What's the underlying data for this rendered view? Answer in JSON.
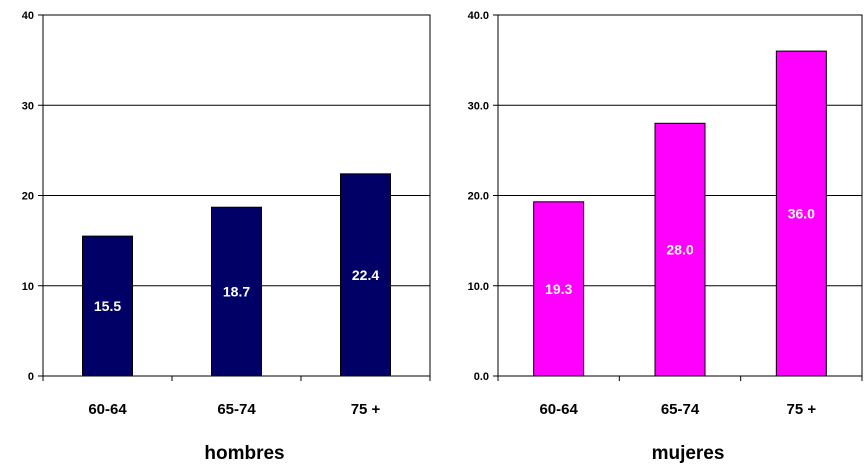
{
  "chart_data": [
    {
      "type": "bar",
      "title": "hombres",
      "categories": [
        "60-64",
        "65-74",
        "75 +"
      ],
      "values": [
        15.5,
        18.7,
        22.4
      ],
      "value_labels": [
        "15.5",
        "18.7",
        "22.4"
      ],
      "ylim": [
        0,
        40
      ],
      "yticks": [
        0,
        10,
        20,
        30,
        40
      ],
      "ytick_labels": [
        "0",
        "10",
        "20",
        "30",
        "40"
      ],
      "grid": true,
      "bar_color": "#000066"
    },
    {
      "type": "bar",
      "title": "mujeres",
      "categories": [
        "60-64",
        "65-74",
        "75 +"
      ],
      "values": [
        19.3,
        28.0,
        36.0
      ],
      "value_labels": [
        "19.3",
        "28.0",
        "36.0"
      ],
      "ylim": [
        0,
        40
      ],
      "yticks": [
        0,
        10,
        20,
        30,
        40
      ],
      "ytick_labels": [
        "0.0",
        "10.0",
        "20.0",
        "30.0",
        "40.0"
      ],
      "grid": true,
      "bar_color": "#ff00ff"
    }
  ]
}
